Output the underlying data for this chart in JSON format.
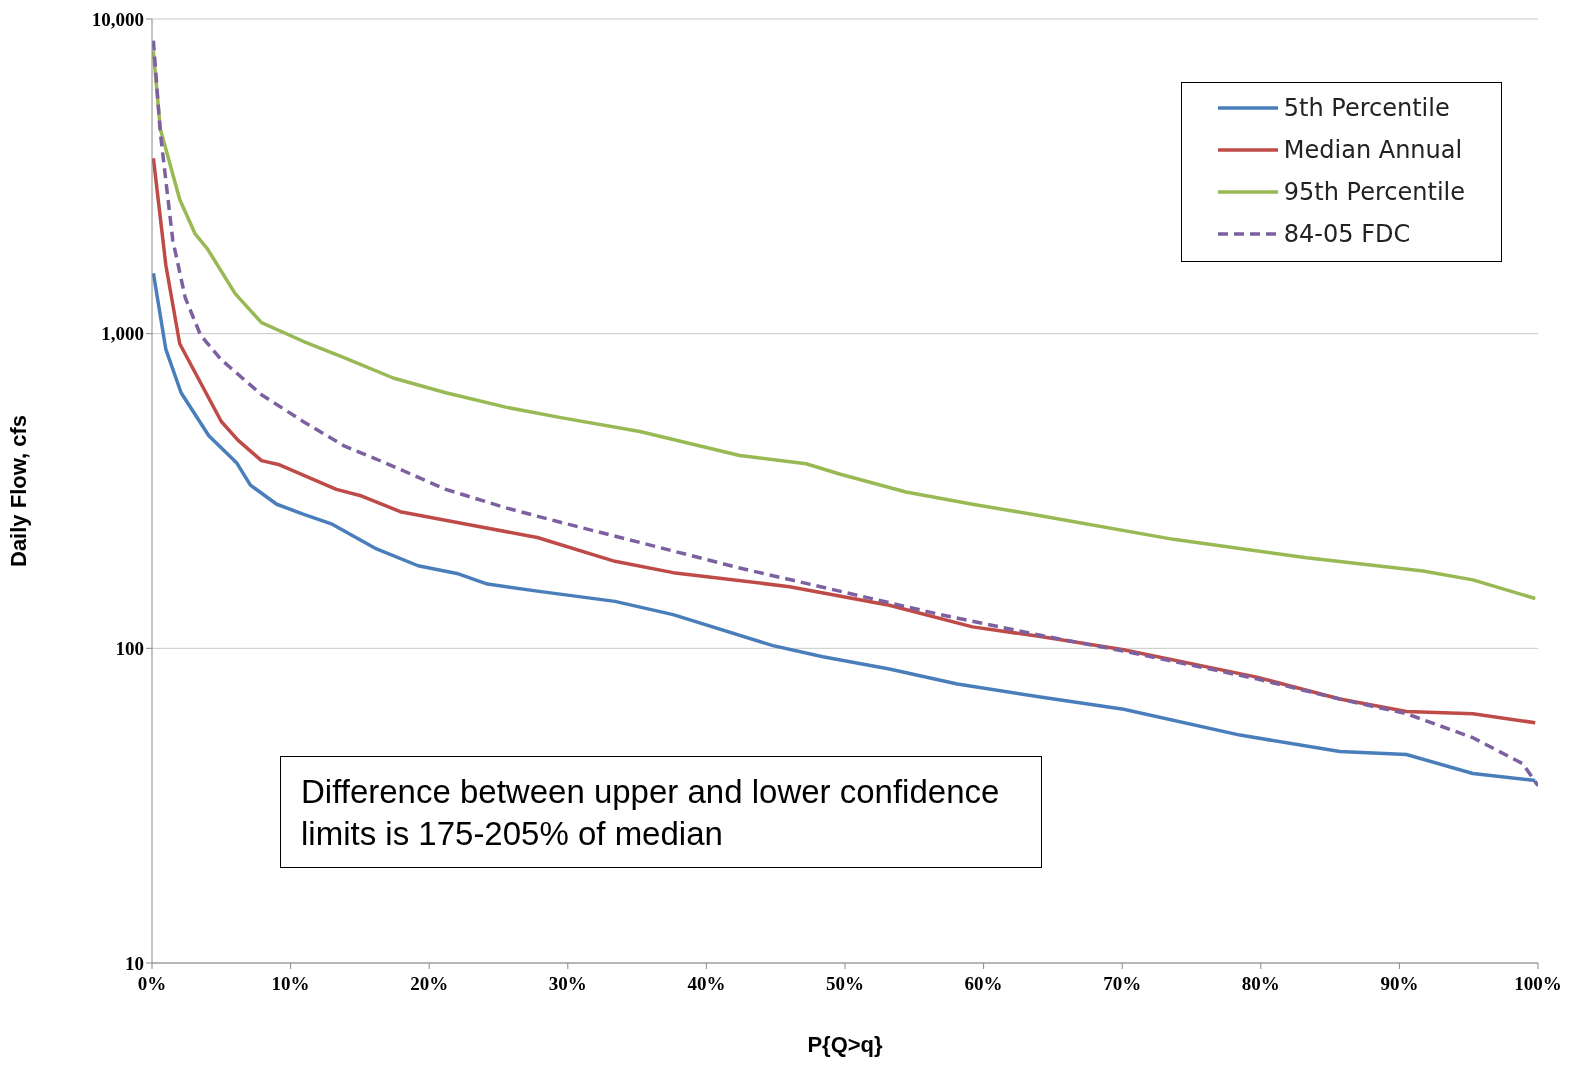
{
  "chart_data": {
    "type": "line",
    "xlabel": "P{Q>q}",
    "ylabel": "Daily Flow, cfs",
    "log": "y",
    "grid": "y",
    "legend": "top right",
    "xlim": [
      0,
      100
    ],
    "xticks": [
      {
        "value": 0,
        "label": "0%"
      },
      {
        "value": 10,
        "label": "10%"
      },
      {
        "value": 20,
        "label": "20%"
      },
      {
        "value": 30,
        "label": "30%"
      },
      {
        "value": 40,
        "label": "40%"
      },
      {
        "value": 50,
        "label": "50%"
      },
      {
        "value": 60,
        "label": "60%"
      },
      {
        "value": 70,
        "label": "70%"
      },
      {
        "value": 80,
        "label": "80%"
      },
      {
        "value": 90,
        "label": "90%"
      },
      {
        "value": 100,
        "label": "100%"
      }
    ],
    "ylim": [
      10,
      10000
    ],
    "yticks": [
      {
        "value": 10,
        "label": "10"
      },
      {
        "value": 100,
        "label": "100"
      },
      {
        "value": 1000,
        "label": "1,000"
      },
      {
        "value": 10000,
        "label": "10,000"
      }
    ],
    "annotations": [
      "Difference between upper and lower confidence limits is 175-205% of median"
    ],
    "series": [
      {
        "name": "5th Percentile",
        "color": "#4a7ebb",
        "line_style": "solid",
        "x": [
          0.1,
          1,
          2.1,
          4.1,
          6.1,
          7.1,
          9,
          10.9,
          13,
          16.2,
          19.2,
          22,
          24.2,
          27.8,
          33.4,
          37.6,
          44.8,
          48.4,
          53.2,
          58.1,
          64.1,
          70.1,
          78.5,
          85.7,
          90.5,
          95.3,
          99.8
        ],
        "values": [
          1556,
          891,
          649,
          474,
          389,
          330,
          287,
          267,
          248,
          207,
          183,
          173,
          160,
          152,
          141,
          128,
          102,
          94,
          86,
          77,
          70,
          64,
          53,
          47,
          46,
          40,
          38
        ]
      },
      {
        "name": "Median Annual",
        "color": "#be4b48",
        "line_style": "solid",
        "x": [
          0.1,
          1,
          2,
          5,
          6.2,
          7.9,
          9.2,
          13.3,
          15,
          18,
          22.7,
          27.8,
          33.4,
          37.6,
          46,
          53.2,
          59.2,
          64.1,
          70.1,
          79.7,
          85.7,
          90.5,
          95.3,
          99.8
        ],
        "values": [
          3610,
          1650,
          929,
          526,
          459,
          395,
          383,
          320,
          306,
          271,
          248,
          225,
          189,
          174,
          157,
          137,
          117,
          109,
          99,
          81,
          69,
          63,
          62,
          58
        ]
      },
      {
        "name": "95th Percentile",
        "color": "#98b954",
        "line_style": "solid",
        "x": [
          0.1,
          0.6,
          2,
          3.1,
          4,
          6,
          7.9,
          10.9,
          13.9,
          17.4,
          21.2,
          25.6,
          29.4,
          35.2,
          42.4,
          47.2,
          49.6,
          54.4,
          59.2,
          64.1,
          73.7,
          83.3,
          91.7,
          95.3,
          99.8
        ],
        "values": [
          7900,
          4470,
          2670,
          2080,
          1860,
          1340,
          1084,
          946,
          838,
          723,
          649,
          583,
          542,
          489,
          410,
          386,
          358,
          314,
          287,
          264,
          222,
          194,
          176,
          165,
          144
        ]
      },
      {
        "name": "84-05 FDC",
        "color": "#7d60a0",
        "line_style": "dashed",
        "x": [
          0.1,
          0.6,
          1.5,
          2.4,
          3.5,
          5,
          7.9,
          10.9,
          13.9,
          16.8,
          21.2,
          25.6,
          29.4,
          35.2,
          42.4,
          49.6,
          56.9,
          64.1,
          70.1,
          79.7,
          85.7,
          90.5,
          95.3,
          98.9,
          100
        ],
        "values": [
          8530,
          4350,
          1980,
          1300,
          990,
          826,
          640,
          526,
          439,
          389,
          320,
          279,
          252,
          217,
          180,
          152,
          128,
          110,
          98,
          80,
          69,
          62,
          52,
          43,
          36.6
        ]
      }
    ]
  }
}
